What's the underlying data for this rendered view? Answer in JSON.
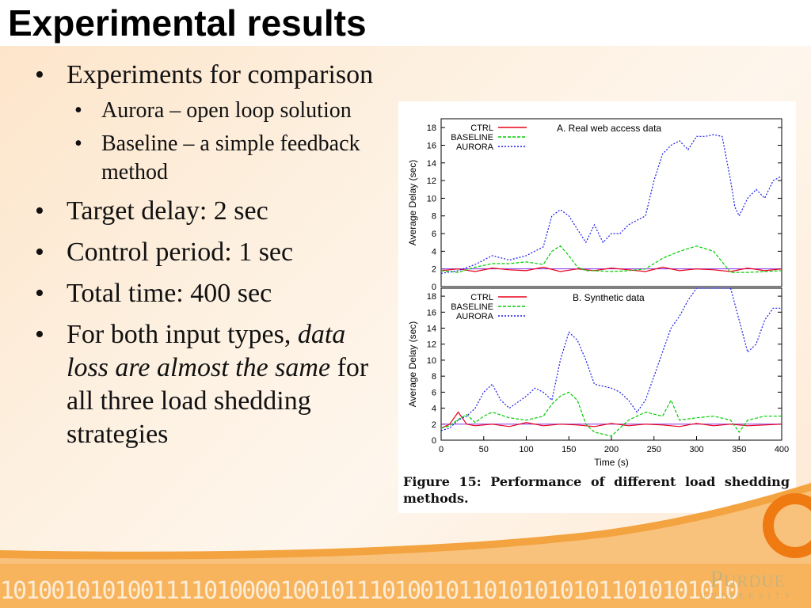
{
  "slide": {
    "title": "Experimental results",
    "bullets": {
      "b1": "Experiments for comparison",
      "b1_sub1": "Aurora – open loop solution",
      "b1_sub2": "Baseline – a simple feedback method",
      "b2": "Target delay: 2 sec",
      "b3": "Control period: 1 sec",
      "b4": "Total time: 400 sec",
      "b5_pre": "For both input types,",
      "b5_em": "data loss are almost the same",
      "b5_post": "for all three load shedding strategies"
    }
  },
  "figure": {
    "caption": "Figure 15: Performance of different load shedding methods."
  },
  "footer": {
    "binary": "1010010101001111010000100101110100101101010101011010101010",
    "logo": "Purdue",
    "logo_sub": "UNIVERSITY"
  },
  "colors": {
    "ctrl": "#e8001a",
    "baseline": "#00cc00",
    "aurora": "#1a1aee",
    "accent_orange": "#f07a12"
  },
  "chart_data": [
    {
      "type": "line",
      "title": "A. Real web access data",
      "ylabel": "Average Delay (sec)",
      "xlabel": "",
      "xlim": [
        0,
        400
      ],
      "ylim": [
        0,
        19
      ],
      "yticks": [
        0,
        2,
        4,
        6,
        8,
        10,
        12,
        14,
        16,
        18
      ],
      "xticks": [],
      "target_line": 2,
      "legend_position": "top-left",
      "series": [
        {
          "name": "CTRL",
          "x": [
            0,
            20,
            40,
            60,
            80,
            100,
            120,
            140,
            160,
            180,
            200,
            220,
            240,
            260,
            280,
            300,
            320,
            340,
            360,
            380,
            400
          ],
          "y": [
            1.8,
            2.0,
            1.7,
            2.1,
            1.9,
            1.8,
            2.2,
            1.7,
            2.0,
            1.8,
            2.1,
            1.9,
            1.7,
            2.2,
            1.8,
            2.0,
            1.9,
            1.7,
            2.1,
            1.8,
            2.0
          ]
        },
        {
          "name": "BASELINE",
          "x": [
            0,
            20,
            40,
            60,
            80,
            100,
            120,
            130,
            140,
            150,
            160,
            170,
            180,
            200,
            220,
            240,
            260,
            280,
            300,
            320,
            340,
            360,
            380,
            400
          ],
          "y": [
            1.8,
            1.6,
            2.2,
            2.6,
            2.6,
            2.8,
            2.5,
            4.0,
            4.6,
            3.5,
            2.2,
            1.8,
            1.8,
            1.7,
            1.8,
            2.0,
            3.2,
            4.0,
            4.6,
            4.0,
            1.6,
            1.6,
            1.7,
            1.8
          ]
        },
        {
          "name": "AURORA",
          "x": [
            0,
            20,
            40,
            60,
            80,
            100,
            120,
            130,
            140,
            150,
            160,
            170,
            180,
            190,
            200,
            210,
            220,
            240,
            250,
            260,
            270,
            280,
            290,
            300,
            310,
            320,
            330,
            340,
            345,
            350,
            360,
            370,
            380,
            390,
            400
          ],
          "y": [
            1.5,
            1.8,
            2.5,
            3.5,
            3.0,
            3.5,
            4.5,
            8.0,
            8.7,
            8.0,
            6.5,
            5.0,
            7.0,
            5.0,
            6.0,
            6.0,
            7.0,
            8.0,
            12.0,
            15.0,
            16.0,
            16.5,
            15.5,
            17.0,
            17.0,
            17.2,
            17.0,
            12.0,
            9.0,
            8.0,
            10.0,
            11.0,
            10.0,
            12.0,
            12.5
          ]
        }
      ]
    },
    {
      "type": "line",
      "title": "B. Synthetic data",
      "ylabel": "Average Delay (sec)",
      "xlabel": "Time (s)",
      "xlim": [
        0,
        400
      ],
      "ylim": [
        0,
        19
      ],
      "yticks": [
        0,
        2,
        4,
        6,
        8,
        10,
        12,
        14,
        16,
        18
      ],
      "xticks": [
        0,
        50,
        100,
        150,
        200,
        250,
        300,
        350,
        400
      ],
      "target_line": 2,
      "legend_position": "top-left",
      "series": [
        {
          "name": "CTRL",
          "x": [
            0,
            10,
            20,
            30,
            40,
            60,
            80,
            100,
            120,
            140,
            160,
            180,
            200,
            220,
            240,
            260,
            280,
            300,
            320,
            340,
            360,
            380,
            400
          ],
          "y": [
            1.5,
            2.0,
            3.5,
            2.0,
            1.8,
            2.0,
            1.7,
            2.2,
            1.8,
            2.0,
            1.9,
            1.7,
            2.1,
            1.8,
            2.0,
            1.9,
            1.7,
            2.1,
            1.8,
            2.0,
            1.8,
            1.9,
            2.0
          ]
        },
        {
          "name": "BASELINE",
          "x": [
            0,
            10,
            20,
            30,
            40,
            50,
            60,
            80,
            100,
            120,
            130,
            140,
            150,
            160,
            170,
            180,
            200,
            220,
            240,
            260,
            270,
            280,
            300,
            320,
            340,
            350,
            360,
            380,
            400
          ],
          "y": [
            1.5,
            1.8,
            2.6,
            3.2,
            2.2,
            3.0,
            3.5,
            2.8,
            2.5,
            3.0,
            4.5,
            5.5,
            6.0,
            5.0,
            2.0,
            1.0,
            0.5,
            2.5,
            3.5,
            3.0,
            5.0,
            2.5,
            2.8,
            3.0,
            2.5,
            1.0,
            2.5,
            3.0,
            3.0
          ]
        },
        {
          "name": "AURORA",
          "x": [
            0,
            10,
            20,
            30,
            40,
            50,
            60,
            70,
            80,
            100,
            110,
            120,
            130,
            140,
            150,
            160,
            170,
            180,
            200,
            210,
            220,
            230,
            240,
            250,
            260,
            270,
            280,
            290,
            300,
            310,
            320,
            330,
            340,
            350,
            360,
            370,
            380,
            390,
            400
          ],
          "y": [
            1.2,
            1.5,
            2.5,
            3.0,
            4.0,
            6.0,
            7.0,
            5.0,
            4.0,
            5.5,
            6.5,
            6.0,
            5.0,
            10.0,
            13.5,
            12.5,
            10.0,
            7.0,
            6.5,
            6.0,
            5.0,
            3.5,
            5.0,
            8.0,
            11.0,
            14.0,
            15.5,
            17.5,
            19.0,
            19.0,
            19.0,
            19.0,
            19.0,
            15.0,
            11.0,
            12.0,
            15.0,
            16.5,
            16.5
          ]
        }
      ]
    }
  ]
}
